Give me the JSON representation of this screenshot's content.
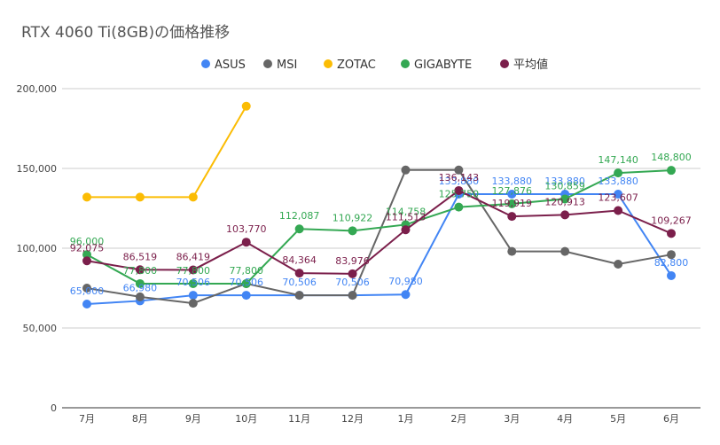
{
  "chart_data": {
    "type": "line",
    "title": "RTX 4060 Ti(8GB)の価格推移",
    "xlabel": "",
    "ylabel": "",
    "categories": [
      "7月",
      "8月",
      "9月",
      "10月",
      "11月",
      "12月",
      "1月",
      "2月",
      "3月",
      "4月",
      "5月",
      "6月"
    ],
    "ylim": [
      0,
      200000
    ],
    "yticks": [
      0,
      50000,
      100000,
      150000,
      200000
    ],
    "ytick_labels": [
      "0",
      "50,000",
      "100,000",
      "150,000",
      "200,000"
    ],
    "grid": true,
    "legend_position": "top",
    "series": [
      {
        "name": "ASUS",
        "color": "#4285F4",
        "values": [
          65000,
          66980,
          70506,
          70506,
          70506,
          70506,
          70980,
          133880,
          133880,
          133880,
          133880,
          82800
        ],
        "labels": [
          "65,000",
          "66,980",
          "70,506",
          "70,506",
          "70,506",
          "70,506",
          "70,980",
          "133,880",
          "133,880",
          "133,880",
          "133,880",
          "82,800"
        ]
      },
      {
        "name": "MSI",
        "color": "#666666",
        "values": [
          75000,
          69500,
          65500,
          77800,
          70500,
          70500,
          149000,
          149000,
          98000,
          98000,
          90000,
          96000
        ],
        "labels": []
      },
      {
        "name": "ZOTAC",
        "color": "#FBBC04",
        "values": [
          132000,
          132000,
          132000,
          189000,
          null,
          null,
          null,
          null,
          null,
          null,
          null,
          null
        ],
        "labels": []
      },
      {
        "name": "GIGABYTE",
        "color": "#34A853",
        "values": [
          96000,
          77800,
          77800,
          77800,
          112087,
          110922,
          114758,
          125750,
          127876,
          130859,
          147140,
          148800
        ],
        "labels": [
          "96,000",
          "77,800",
          "77,800",
          "77,800",
          "112,087",
          "110,922",
          "114,758",
          "125,750",
          "127,876",
          "130,859",
          "147,140",
          "148,800"
        ]
      },
      {
        "name": "平均値",
        "color": "#7B1F4B",
        "values": [
          92075,
          86519,
          86419,
          103770,
          84364,
          83976,
          111513,
          136143,
          119919,
          120913,
          123607,
          109267
        ],
        "labels": [
          "92,075",
          "86,519",
          "86,419",
          "103,770",
          "84,364",
          "83,976",
          "111,513",
          "136,143",
          "119,919",
          "120,913",
          "123,607",
          "109,267"
        ]
      }
    ]
  }
}
